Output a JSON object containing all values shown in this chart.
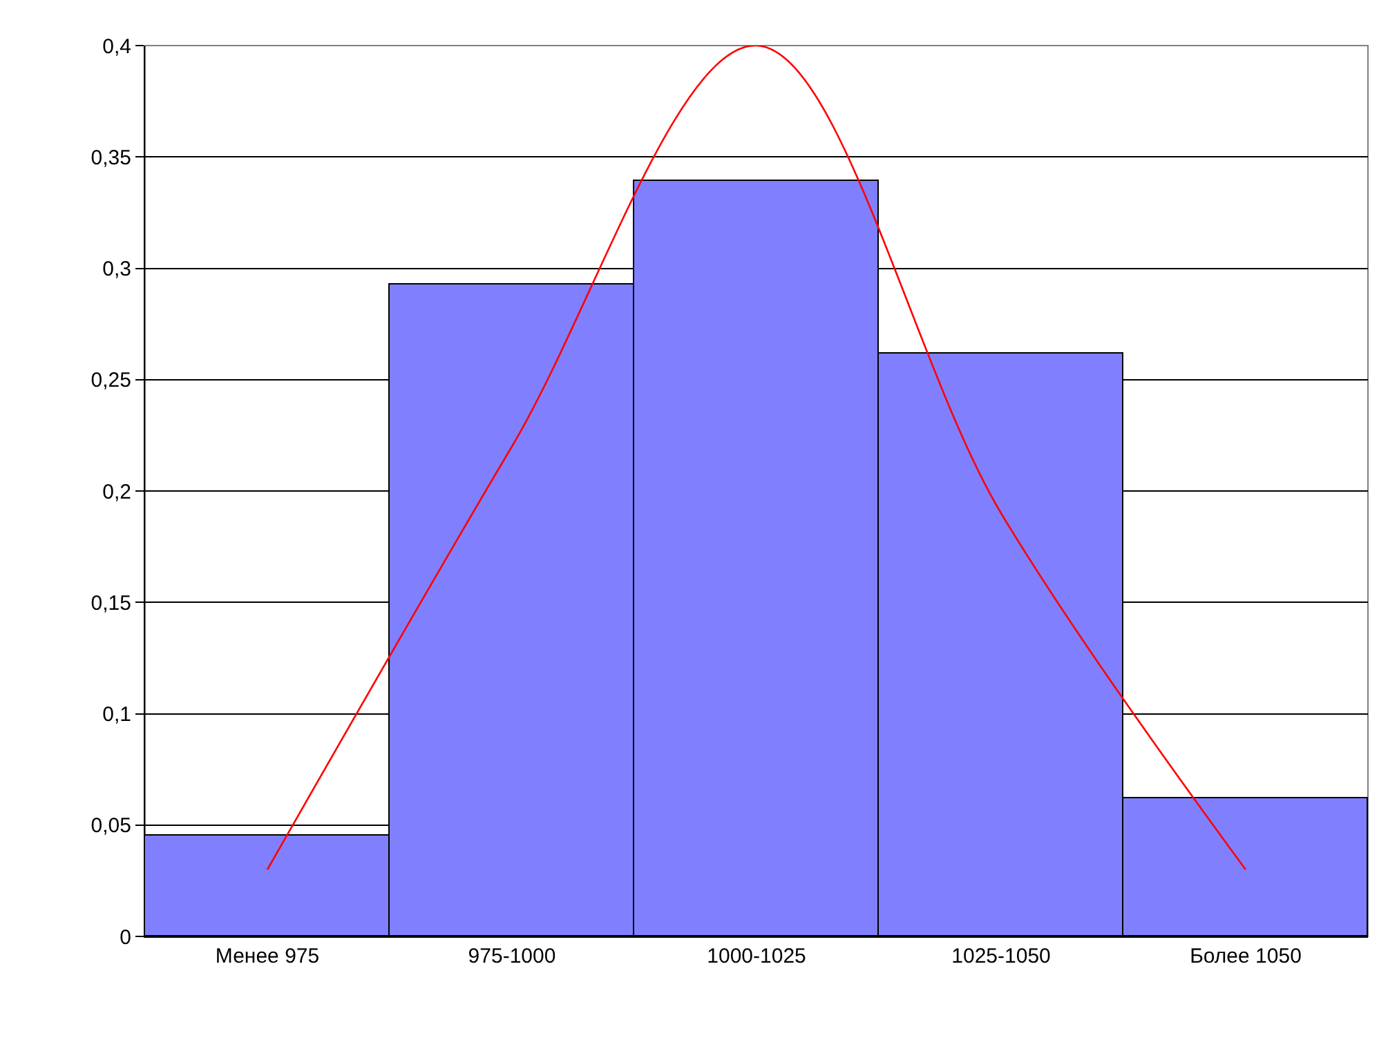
{
  "chart_data": {
    "type": "bar",
    "categories": [
      "Менее 975",
      "975-1000",
      "1000-1025",
      "1025-1050",
      "Более 1050"
    ],
    "series": [
      {
        "color": "#8080ff",
        "values": [
          0.045,
          0.293,
          0.339,
          0.262,
          0.062
        ]
      },
      {
        "type": "line",
        "color": "#ff0000",
        "values": [
          0.03,
          0.22,
          0.4,
          0.19,
          0.03
        ]
      }
    ],
    "ylim": [
      0,
      0.4
    ],
    "yticks": [
      0,
      {
        "value": 0.05,
        "label": "0,05"
      },
      {
        "value": 0.1,
        "label": "0,1"
      },
      {
        "value": 0.15,
        "label": "0,15"
      },
      {
        "value": 0.2,
        "label": "0,2"
      },
      {
        "value": 0.25,
        "label": "0,25"
      },
      {
        "value": 0.3,
        "label": "0,3"
      },
      {
        "value": 0.35,
        "label": "0,35"
      },
      {
        "value": 0.4,
        "label": "0,4"
      }
    ],
    "grid": "y",
    "legend": false,
    "marker": "none",
    "line_style": "solid"
  }
}
